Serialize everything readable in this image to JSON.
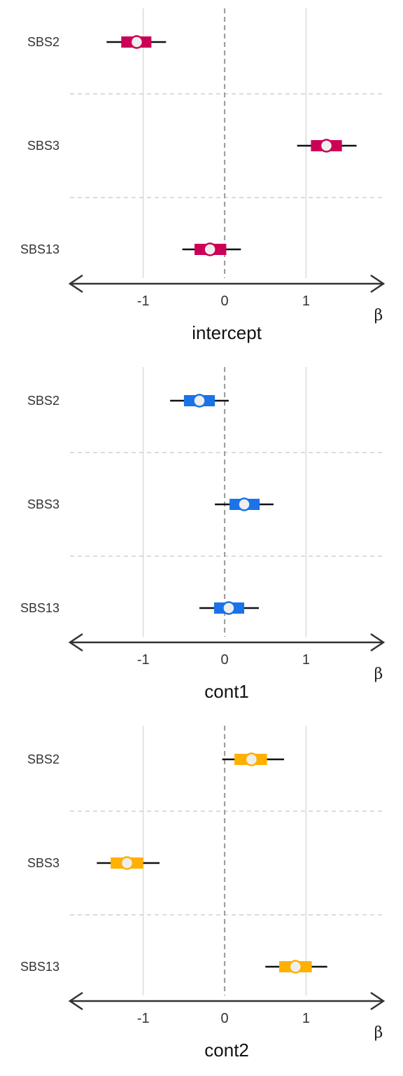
{
  "chart_data": [
    {
      "type": "forest",
      "title": "intercept",
      "axis_symbol": "β",
      "color": "#cc0055",
      "categories": [
        "SBS2",
        "SBS3",
        "SBS13"
      ],
      "xlim": [
        -1.9,
        1.95
      ],
      "xticks": [
        -1,
        0,
        1
      ],
      "grid": true,
      "estimates": [
        {
          "category": "SBS2",
          "mean": -1.08,
          "inner": [
            -1.27,
            -0.9
          ],
          "outer": [
            -1.45,
            -0.72
          ]
        },
        {
          "category": "SBS3",
          "mean": 1.25,
          "inner": [
            1.06,
            1.44
          ],
          "outer": [
            0.89,
            1.62
          ]
        },
        {
          "category": "SBS13",
          "mean": -0.18,
          "inner": [
            -0.37,
            0.02
          ],
          "outer": [
            -0.52,
            0.2
          ]
        }
      ]
    },
    {
      "type": "forest",
      "title": "cont1",
      "axis_symbol": "β",
      "color": "#1a73e8",
      "categories": [
        "SBS2",
        "SBS3",
        "SBS13"
      ],
      "xlim": [
        -1.9,
        1.95
      ],
      "xticks": [
        -1,
        0,
        1
      ],
      "grid": true,
      "estimates": [
        {
          "category": "SBS2",
          "mean": -0.31,
          "inner": [
            -0.5,
            -0.12
          ],
          "outer": [
            -0.67,
            0.05
          ]
        },
        {
          "category": "SBS3",
          "mean": 0.24,
          "inner": [
            0.06,
            0.43
          ],
          "outer": [
            -0.12,
            0.6
          ]
        },
        {
          "category": "SBS13",
          "mean": 0.05,
          "inner": [
            -0.13,
            0.24
          ],
          "outer": [
            -0.31,
            0.42
          ]
        }
      ]
    },
    {
      "type": "forest",
      "title": "cont2",
      "axis_symbol": "β",
      "color": "#ffb000",
      "categories": [
        "SBS2",
        "SBS3",
        "SBS13"
      ],
      "xlim": [
        -1.9,
        1.95
      ],
      "xticks": [
        -1,
        0,
        1
      ],
      "grid": true,
      "estimates": [
        {
          "category": "SBS2",
          "mean": 0.33,
          "inner": [
            0.12,
            0.52
          ],
          "outer": [
            -0.03,
            0.73
          ]
        },
        {
          "category": "SBS3",
          "mean": -1.2,
          "inner": [
            -1.4,
            -1.0
          ],
          "outer": [
            -1.57,
            -0.8
          ]
        },
        {
          "category": "SBS13",
          "mean": 0.87,
          "inner": [
            0.67,
            1.07
          ],
          "outer": [
            0.5,
            1.26
          ]
        }
      ]
    }
  ]
}
